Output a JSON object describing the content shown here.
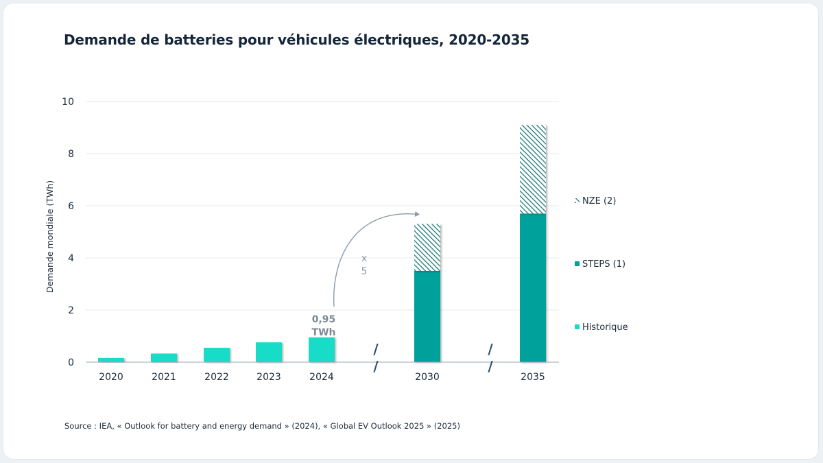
{
  "title": "Demande de batteries pour véhicules électriques, 2020-2035",
  "source": "Source : IEA, « Outlook for battery and energy demand » (2024), « Global EV Outlook 2025 » (2025)",
  "colors": {
    "historique": "#14dcc8",
    "steps": "#00a19b",
    "nze_hatch": "#1b7a78",
    "axis": "#9aa7b2",
    "grid": "#e6eaee",
    "arrow": "#8a9aa8"
  },
  "chart_data": {
    "type": "bar",
    "stacked": true,
    "categories": [
      "2020",
      "2021",
      "2022",
      "2023",
      "2024",
      "2030",
      "2035"
    ],
    "series": [
      {
        "name": "Historique",
        "values": [
          0.16,
          0.33,
          0.55,
          0.76,
          0.95,
          0,
          0
        ]
      },
      {
        "name": "STEPS (1)",
        "values": [
          0,
          0,
          0,
          0,
          0,
          3.5,
          5.7
        ]
      },
      {
        "name": "NZE (2)",
        "values": [
          0,
          0,
          0,
          0,
          0,
          1.8,
          3.4
        ]
      }
    ],
    "ylabel": "Demande mondiale (TWh)",
    "xlabel": "",
    "ylim": [
      0,
      10
    ],
    "yticks": [
      0,
      2,
      4,
      6,
      8,
      10
    ],
    "grid": true,
    "legend_position": "right",
    "legend_order": [
      "NZE (2)",
      "STEPS (1)",
      "Historique"
    ],
    "axis_break_mark": "/",
    "annotations": {
      "value_label_line1": "0,95",
      "value_label_line2": "TWh",
      "multiplier_line1": "x",
      "multiplier_line2": "5"
    }
  }
}
